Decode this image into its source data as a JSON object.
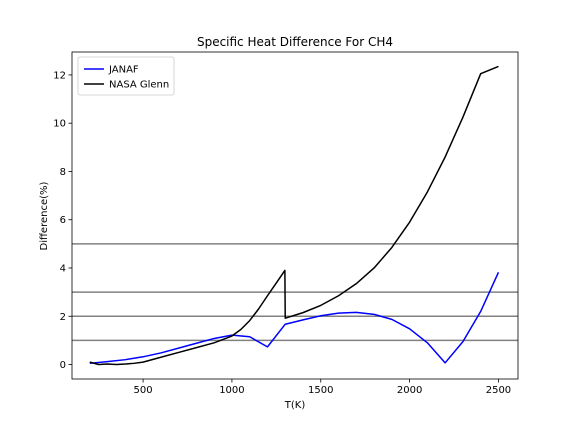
{
  "chart_data": {
    "type": "line",
    "title": "Specific Heat Difference For CH4",
    "xlabel": "T(K)",
    "ylabel": "Difference(%)",
    "xlim": [
      100,
      2610
    ],
    "ylim": [
      -0.6,
      12.95
    ],
    "xticks": [
      500,
      1000,
      1500,
      2000,
      2500
    ],
    "yticks": [
      0,
      2,
      4,
      6,
      8,
      10,
      12
    ],
    "grid": false,
    "legend_position": "top-left",
    "series": [
      {
        "name": "JANAF",
        "color": "#0000ff",
        "points": [
          [
            200,
            0.05
          ],
          [
            298,
            0.12
          ],
          [
            400,
            0.2
          ],
          [
            500,
            0.32
          ],
          [
            600,
            0.48
          ],
          [
            700,
            0.68
          ],
          [
            800,
            0.88
          ],
          [
            900,
            1.08
          ],
          [
            1000,
            1.22
          ],
          [
            1100,
            1.15
          ],
          [
            1200,
            0.73
          ],
          [
            1300,
            1.67
          ],
          [
            1400,
            1.85
          ],
          [
            1500,
            2.02
          ],
          [
            1600,
            2.13
          ],
          [
            1700,
            2.16
          ],
          [
            1800,
            2.08
          ],
          [
            1900,
            1.87
          ],
          [
            2000,
            1.48
          ],
          [
            2100,
            0.9
          ],
          [
            2200,
            0.07
          ],
          [
            2300,
            0.95
          ],
          [
            2400,
            2.2
          ],
          [
            2500,
            3.82
          ]
        ]
      },
      {
        "name": "NASA Glenn",
        "color": "#000000",
        "points": [
          [
            200,
            0.1
          ],
          [
            250,
            0.0
          ],
          [
            298,
            0.02
          ],
          [
            350,
            0.0
          ],
          [
            400,
            0.02
          ],
          [
            450,
            0.05
          ],
          [
            500,
            0.1
          ],
          [
            600,
            0.3
          ],
          [
            700,
            0.5
          ],
          [
            800,
            0.7
          ],
          [
            900,
            0.9
          ],
          [
            1000,
            1.18
          ],
          [
            1050,
            1.45
          ],
          [
            1100,
            1.82
          ],
          [
            1150,
            2.3
          ],
          [
            1200,
            2.85
          ],
          [
            1250,
            3.38
          ],
          [
            1298,
            3.9
          ],
          [
            1300,
            1.92
          ],
          [
            1400,
            2.15
          ],
          [
            1500,
            2.45
          ],
          [
            1600,
            2.85
          ],
          [
            1700,
            3.35
          ],
          [
            1800,
            4.0
          ],
          [
            1900,
            4.85
          ],
          [
            2000,
            5.9
          ],
          [
            2100,
            7.15
          ],
          [
            2200,
            8.6
          ],
          [
            2300,
            10.25
          ],
          [
            2400,
            12.05
          ],
          [
            2500,
            12.35
          ]
        ]
      }
    ],
    "reference_lines": [
      {
        "y": 1,
        "color": "#808080"
      },
      {
        "y": 2,
        "color": "#808080"
      },
      {
        "y": 3,
        "color": "#808080"
      },
      {
        "y": 5,
        "color": "#808080"
      }
    ]
  }
}
